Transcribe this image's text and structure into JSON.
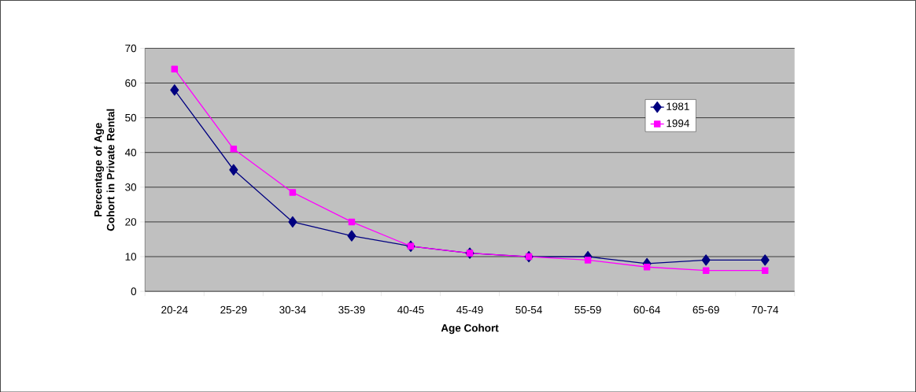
{
  "chart_data": {
    "type": "line",
    "xlabel": "Age Cohort",
    "ylabel": "Percentage of Age Cohort in Private Rental",
    "categories": [
      "20-24",
      "25-29",
      "30-34",
      "35-39",
      "40-45",
      "45-49",
      "50-54",
      "55-59",
      "60-64",
      "65-69",
      "70-74"
    ],
    "series": [
      {
        "name": "1981",
        "color": "#000080",
        "marker": "diamond",
        "values": [
          58,
          35,
          20,
          16,
          13,
          11,
          10,
          10,
          8,
          9,
          9
        ]
      },
      {
        "name": "1994",
        "color": "#ff00ff",
        "marker": "square",
        "values": [
          64,
          41,
          28.5,
          20,
          13,
          11,
          10,
          9,
          7,
          6,
          6
        ]
      }
    ],
    "ylim": [
      0,
      70
    ],
    "yticks": [
      0,
      10,
      20,
      30,
      40,
      50,
      60,
      70
    ],
    "grid": "y",
    "legend": "top right"
  }
}
